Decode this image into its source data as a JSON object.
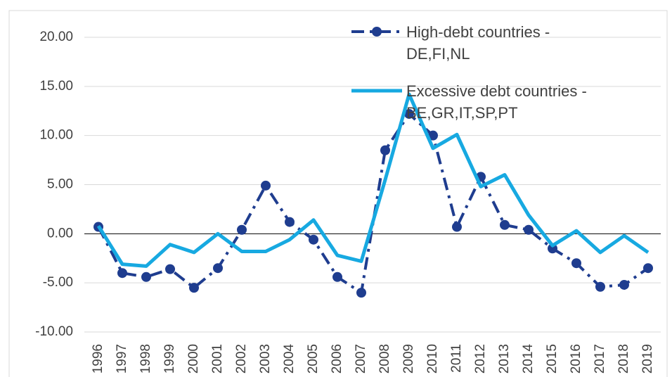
{
  "chart_data": {
    "type": "line",
    "categories": [
      "1996",
      "1997",
      "1998",
      "1999",
      "2000",
      "2001",
      "2002",
      "2003",
      "2004",
      "2005",
      "2006",
      "2007",
      "2008",
      "2009",
      "2010",
      "2011",
      "2012",
      "2013",
      "2014",
      "2015",
      "2016",
      "2017",
      "2018",
      "2019"
    ],
    "series": [
      {
        "name": "High-debt countries - DE,FI,NL",
        "color": "#1f3d8f",
        "style": "dash-dot-markers",
        "values": [
          0.7,
          -4.0,
          -4.4,
          -3.6,
          -5.5,
          -3.5,
          0.4,
          4.9,
          1.2,
          -0.6,
          -4.4,
          -6.0,
          8.5,
          12.2,
          10.0,
          0.7,
          5.8,
          0.9,
          0.4,
          -1.5,
          -3.0,
          -5.4,
          -5.2,
          -3.5
        ]
      },
      {
        "name": "Excessive debt countries - BE,GR,IT,SP,PT",
        "color": "#17a9e1",
        "style": "solid",
        "values": [
          0.8,
          -3.1,
          -3.3,
          -1.1,
          -1.9,
          0.0,
          -1.8,
          -1.8,
          -0.6,
          1.4,
          -2.2,
          -2.8,
          5.5,
          14.2,
          8.7,
          10.1,
          4.8,
          6.0,
          1.9,
          -1.2,
          0.3,
          -1.9,
          -0.2,
          -1.9
        ]
      }
    ],
    "ylim": [
      -10,
      20
    ],
    "yticks": [
      {
        "value": -10,
        "label": "-10.00"
      },
      {
        "value": -5,
        "label": "-5.00"
      },
      {
        "value": 0,
        "label": "0.00"
      },
      {
        "value": 5,
        "label": "5.00"
      },
      {
        "value": 10,
        "label": "10.00"
      },
      {
        "value": 15,
        "label": "15.00"
      },
      {
        "value": 20,
        "label": "20.00"
      }
    ],
    "grid": true,
    "legend": "top-right"
  }
}
